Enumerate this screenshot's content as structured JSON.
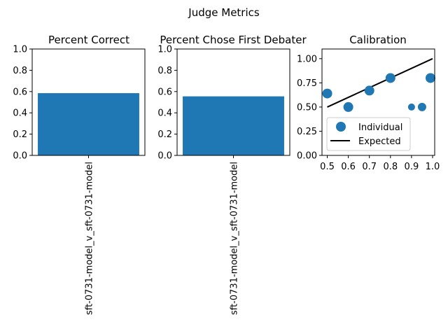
{
  "figure": {
    "suptitle": "Judge Metrics"
  },
  "chart_data": [
    {
      "type": "bar",
      "title": "Percent Correct",
      "categories": [
        "sft-0731-model_v_sft-0731-model"
      ],
      "values": [
        0.585
      ],
      "ylim": [
        0,
        1.0
      ],
      "yticks": [
        "0.0",
        "0.2",
        "0.4",
        "0.6",
        "0.8",
        "1.0"
      ],
      "color": "#1f77b4"
    },
    {
      "type": "bar",
      "title": "Percent Chose First Debater",
      "categories": [
        "sft-0731-model_v_sft-0731-model"
      ],
      "values": [
        0.555
      ],
      "ylim": [
        0,
        1.0
      ],
      "yticks": [
        "0.0",
        "0.2",
        "0.4",
        "0.6",
        "0.8",
        "1.0"
      ],
      "color": "#1f77b4"
    },
    {
      "type": "scatter",
      "title": "Calibration",
      "xlim": [
        0.475,
        1.01
      ],
      "ylim": [
        0,
        1.1
      ],
      "xticks": [
        "0.5",
        "0.6",
        "0.7",
        "0.8",
        "0.9",
        "1.0"
      ],
      "yticks": [
        "0.00",
        "0.25",
        "0.50",
        "0.75",
        "1.00"
      ],
      "series": [
        {
          "name": "Individual",
          "color": "#1f77b4",
          "points": [
            {
              "x": 0.5,
              "y": 0.64,
              "weight": 2
            },
            {
              "x": 0.6,
              "y": 0.5,
              "weight": 2
            },
            {
              "x": 0.7,
              "y": 0.67,
              "weight": 2
            },
            {
              "x": 0.8,
              "y": 0.8,
              "weight": 2
            },
            {
              "x": 0.9,
              "y": 0.5,
              "weight": 1
            },
            {
              "x": 0.95,
              "y": 0.5,
              "weight": 1.5
            },
            {
              "x": 0.99,
              "y": 0.8,
              "weight": 2
            }
          ]
        },
        {
          "name": "Expected",
          "color": "#000000",
          "line": [
            [
              0.5,
              0.5
            ],
            [
              1.0,
              1.0
            ]
          ]
        }
      ],
      "legend": "lower-left"
    }
  ]
}
